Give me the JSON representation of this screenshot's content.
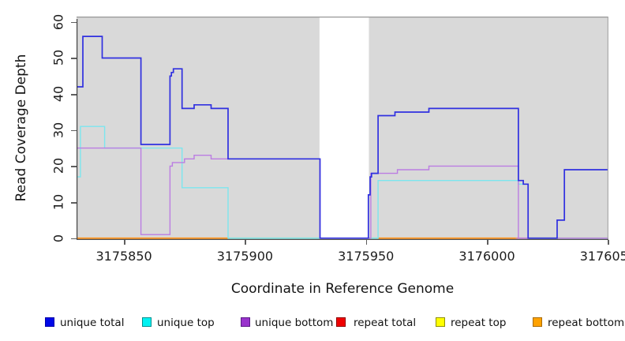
{
  "axes": {
    "x_title": "Coordinate in Reference Genome",
    "y_title": "Read Coverage Depth",
    "x_ticks": [
      {
        "value": 3175850,
        "label": "3175850"
      },
      {
        "value": 3175900,
        "label": "3175900"
      },
      {
        "value": 3175950,
        "label": "3175950"
      },
      {
        "value": 3176000,
        "label": "3176000"
      },
      {
        "value": 3176050,
        "label": "3176050"
      }
    ],
    "y_ticks": [
      {
        "value": 0,
        "label": "0"
      },
      {
        "value": 10,
        "label": "10"
      },
      {
        "value": 20,
        "label": "20"
      },
      {
        "value": 30,
        "label": "30"
      },
      {
        "value": 40,
        "label": "40"
      },
      {
        "value": 50,
        "label": "50"
      },
      {
        "value": 60,
        "label": "60"
      }
    ]
  },
  "chart_data": {
    "type": "line",
    "subtype": "step",
    "title": "",
    "xlabel": "Coordinate in Reference Genome",
    "ylabel": "Read Coverage Depth",
    "xlim": [
      3175830.4,
      3176050.2
    ],
    "ylim": [
      -0.5,
      61
    ],
    "grid": false,
    "plot_background": "#d9d9d9",
    "no_data_region": {
      "from": 3175930.8,
      "to": 3175951.2,
      "color": "#ffffff"
    },
    "series": [
      {
        "name": "unique total",
        "line_color": "#3030e0",
        "draw": true,
        "steps": [
          [
            3175830,
            42
          ],
          [
            3175833,
            56
          ],
          [
            3175841,
            50
          ],
          [
            3175857,
            26
          ],
          [
            3175869,
            45
          ],
          [
            3175869.6,
            46
          ],
          [
            3175870.4,
            47
          ],
          [
            3175874,
            36
          ],
          [
            3175879,
            37
          ],
          [
            3175886,
            36
          ],
          [
            3175893,
            22
          ],
          [
            3175931,
            0
          ],
          [
            3175951,
            12
          ],
          [
            3175951.7,
            17
          ],
          [
            3175952.3,
            18
          ],
          [
            3175955,
            34
          ],
          [
            3175962,
            35
          ],
          [
            3175976,
            36
          ],
          [
            3176013,
            16
          ],
          [
            3176015,
            15
          ],
          [
            3176017,
            0
          ],
          [
            3176029,
            5
          ],
          [
            3176032,
            19
          ]
        ]
      },
      {
        "name": "unique top",
        "line_color": "#7ce6ee",
        "draw": true,
        "steps": [
          [
            3175830,
            17
          ],
          [
            3175832,
            31
          ],
          [
            3175842,
            25
          ],
          [
            3175874,
            14
          ],
          [
            3175893,
            0
          ],
          [
            3175955,
            16
          ],
          [
            3176013,
            15
          ],
          [
            3176017,
            0
          ]
        ]
      },
      {
        "name": "unique bottom",
        "line_color": "#bb7de2",
        "draw": true,
        "steps": [
          [
            3175830,
            25
          ],
          [
            3175857,
            1
          ],
          [
            3175869,
            20
          ],
          [
            3175870,
            21
          ],
          [
            3175875,
            22
          ],
          [
            3175879,
            23
          ],
          [
            3175886,
            22
          ],
          [
            3175931,
            0
          ],
          [
            3175952,
            18
          ],
          [
            3175963,
            19
          ],
          [
            3175976,
            20
          ],
          [
            3176013,
            0
          ]
        ]
      },
      {
        "name": "repeat total",
        "line_color": "#cc0000",
        "draw": false,
        "steps": [
          [
            3175830,
            0
          ]
        ]
      },
      {
        "name": "repeat top",
        "line_color": "#e8e800",
        "draw": false,
        "steps": [
          [
            3175830,
            0
          ]
        ]
      },
      {
        "name": "repeat bottom",
        "line_color": "#ff9015",
        "draw": false,
        "steps": [
          [
            3175830,
            0
          ]
        ]
      }
    ],
    "draw_order": [
      1,
      2,
      0
    ],
    "baseline_segments": [
      {
        "from": 3175830,
        "to": 3175893,
        "color": "#ff9015"
      },
      {
        "from": 3175893,
        "to": 3175931,
        "color": "#93cd96"
      },
      {
        "from": 3175951,
        "to": 3175955,
        "color": "#93cd96"
      },
      {
        "from": 3175955,
        "to": 3176012,
        "color": "#ff9015"
      },
      {
        "from": 3176012,
        "to": 3176017,
        "color": "#e5808f"
      },
      {
        "from": 3176017,
        "to": 3176050.2,
        "color": "#93cd96"
      }
    ],
    "legend": [
      {
        "label": "unique total",
        "fill": "#0008e8",
        "border": "#0000a8"
      },
      {
        "label": "unique top",
        "fill": "#00f2f2",
        "border": "#008f8f"
      },
      {
        "label": "unique bottom",
        "fill": "#9933cc",
        "border": "#5a1a86"
      },
      {
        "label": "repeat total",
        "fill": "#f00000",
        "border": "#8f0000"
      },
      {
        "label": "repeat top",
        "fill": "#ffff00",
        "border": "#8f8f00"
      },
      {
        "label": "repeat bottom",
        "fill": "#ffa200",
        "border": "#a86a00"
      }
    ],
    "legend_position": "bottom"
  }
}
